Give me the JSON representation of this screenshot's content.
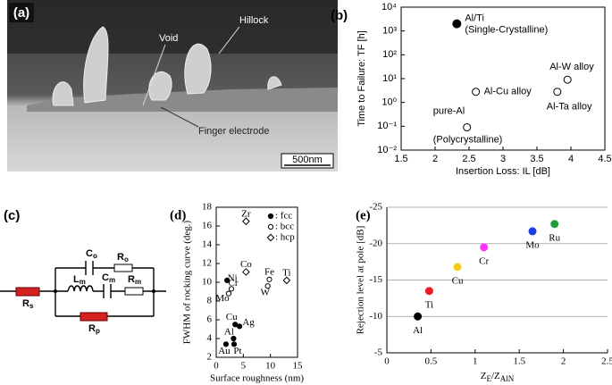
{
  "figure": {
    "panel_a": {
      "label": "(a)",
      "annotations": [
        "Void",
        "Hillock",
        "Finger electrode"
      ],
      "scale_bar": "500nm"
    },
    "panel_c": {
      "label": "(c)",
      "components": [
        {
          "text": "C",
          "sub": "o"
        },
        {
          "text": "R",
          "sub": "o"
        },
        {
          "text": "L",
          "sub": "m"
        },
        {
          "text": "C",
          "sub": "m"
        },
        {
          "text": "R",
          "sub": "m"
        },
        {
          "text": "R",
          "sub": "s"
        },
        {
          "text": "R",
          "sub": "p"
        }
      ]
    }
  },
  "chart_data": [
    {
      "panel_label": "(b)",
      "type": "scatter",
      "xlabel": "Insertion Loss: IL [dB]",
      "ylabel": "Time to Failure: TF [h]",
      "ylog": true,
      "xlim": [
        1.5,
        4.5
      ],
      "xticks": [
        1.5,
        2,
        2.5,
        3,
        3.5,
        4,
        4.5
      ],
      "ylim": [
        0.01,
        10000
      ],
      "yticks": [
        {
          "value": 0.01,
          "label": "10⁻²"
        },
        {
          "value": 0.1,
          "label": "10⁻¹"
        },
        {
          "value": 1,
          "label": "10⁰"
        },
        {
          "value": 10,
          "label": "10¹"
        },
        {
          "value": 100,
          "label": "10²"
        },
        {
          "value": 1000,
          "label": "10³"
        },
        {
          "value": 10000,
          "label": "10⁴"
        }
      ],
      "x": [
        2.32,
        2.6,
        2.47,
        3.8,
        3.95
      ],
      "values": [
        2000,
        2.8,
        0.09,
        2.8,
        9
      ],
      "filled": [
        true,
        false,
        false,
        false,
        false
      ],
      "point_labels": [
        [
          "Al/Ti",
          "(Single-Crystalline)"
        ],
        [
          "Al-Cu alloy"
        ],
        [
          "pure-Al",
          "(Polycrystalline)"
        ],
        [
          "Al-Ta alloy"
        ],
        [
          "Al-W alloy"
        ]
      ],
      "color": "#000000"
    },
    {
      "panel_label": "(d)",
      "type": "scatter",
      "xlabel": "Surface roughness (nm)",
      "ylabel": "FWHM of rocking curve (deg.)",
      "xlim": [
        0,
        15
      ],
      "xticks": [
        0,
        5,
        10,
        15
      ],
      "ylim": [
        2,
        18
      ],
      "yticks": [
        2,
        4,
        6,
        8,
        10,
        12,
        14,
        16,
        18
      ],
      "legend": "upper right",
      "color": "#000000",
      "series": [
        {
          "name": ": fcc",
          "marker": "filled-circle",
          "x": [
            2,
            3.5,
            4.3,
            3.2,
            1.8,
            3.3
          ],
          "values": [
            10.2,
            5.5,
            5.3,
            4.0,
            3.4,
            3.4
          ],
          "point_labels": [
            "Ni",
            "Cu",
            "Ag",
            "Al",
            "Au",
            "Pt"
          ]
        },
        {
          "name": ": bcc",
          "marker": "open-circle",
          "x": [
            2.8,
            2.3,
            9.8,
            9.5
          ],
          "values": [
            9.3,
            8.8,
            10.3,
            9.6
          ],
          "point_labels": [
            "Cr",
            "Mo",
            "Fe",
            "W"
          ]
        },
        {
          "name": ": hcp",
          "marker": "diamond",
          "x": [
            5.5,
            5.5,
            13
          ],
          "values": [
            16.5,
            11.1,
            10.2
          ],
          "point_labels": [
            "Zr",
            "Co",
            "Ti"
          ]
        }
      ]
    },
    {
      "panel_label": "(e)",
      "type": "scatter",
      "xlabel_parts": [
        "Z",
        "E",
        "/Z",
        "AlN"
      ],
      "ylabel": "Rejection level at pole [dB]",
      "xlim": [
        0,
        2.5
      ],
      "xticks": [
        0,
        0.5,
        1,
        1.5,
        2,
        2.5
      ],
      "ylim": [
        -5,
        -25
      ],
      "yticks": [
        -5,
        -10,
        -15,
        -20,
        -25
      ],
      "grid": true,
      "x": [
        0.35,
        0.48,
        0.8,
        1.1,
        1.65,
        1.9
      ],
      "values": [
        -10,
        -13.5,
        -16.8,
        -19.5,
        -21.7,
        -22.7
      ],
      "point_labels": [
        "Al",
        "Ti",
        "Cu",
        "Cr",
        "Mo",
        "Ru"
      ],
      "colors": [
        "#000000",
        "#ee1c24",
        "#f7cb15",
        "#ff33ff",
        "#1f3de0",
        "#1e9a38"
      ]
    }
  ]
}
